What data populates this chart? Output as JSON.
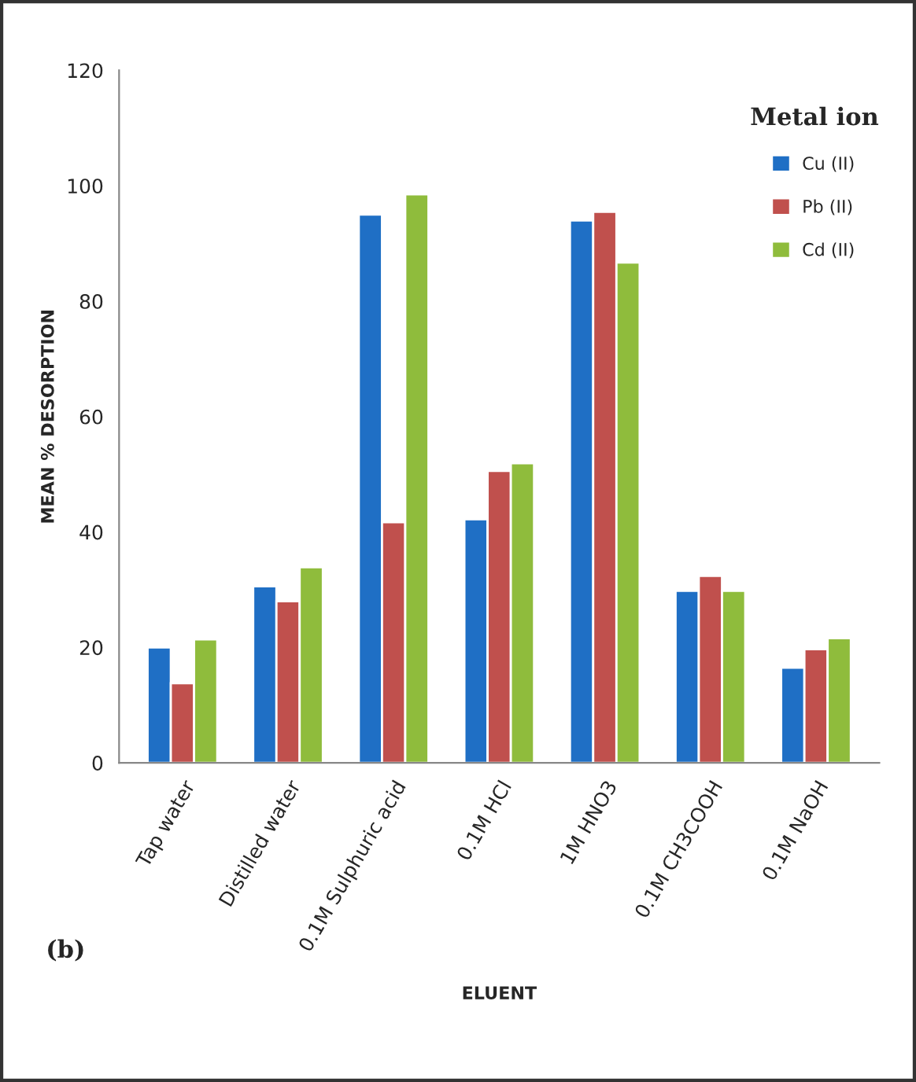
{
  "chart_data": {
    "type": "bar",
    "xlabel": "ELUENT",
    "ylabel": "MEAN % DESORPTION",
    "legend_title": "Metal ion",
    "categories": [
      "Tap water",
      "Distilled water",
      "0.1M Sulphuric acid",
      "0.1M HCl",
      "1M HNO3",
      "0.1M CH3COOH",
      "0.1M NaOH"
    ],
    "series": [
      {
        "name": "Cu (II)",
        "color": "#1f6fc5",
        "values": [
          20.0,
          30.6,
          95.0,
          42.2,
          94.0,
          29.8,
          16.5
        ]
      },
      {
        "name": "Pb (II)",
        "color": "#c0504d",
        "values": [
          13.8,
          28.0,
          41.7,
          50.6,
          95.5,
          32.4,
          19.7
        ]
      },
      {
        "name": "Cd (II)",
        "color": "#8fbc3c",
        "values": [
          21.4,
          33.9,
          98.5,
          51.9,
          86.7,
          29.8,
          21.6
        ]
      }
    ],
    "ylim": [
      0,
      120
    ],
    "yticks": [
      0,
      20,
      40,
      60,
      80,
      100,
      120
    ],
    "grid": false,
    "legend": "top right",
    "annotations": [
      "(b)"
    ]
  }
}
